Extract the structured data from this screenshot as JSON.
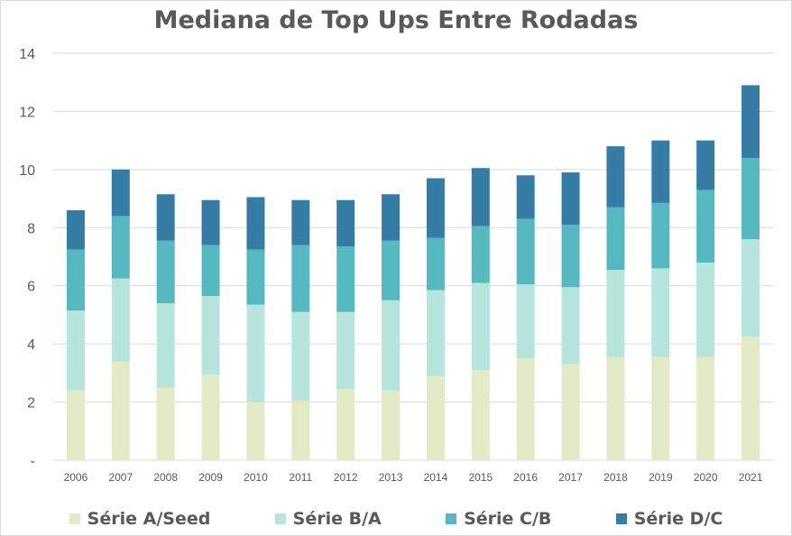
{
  "chart_data": {
    "type": "bar",
    "stacked": true,
    "title": "Mediana de Top Ups Entre Rodadas",
    "xlabel": "",
    "ylabel": "",
    "categories": [
      "2006",
      "2007",
      "2008",
      "2009",
      "2010",
      "2011",
      "2012",
      "2013",
      "2014",
      "2015",
      "2016",
      "2017",
      "2018",
      "2019",
      "2020",
      "2021"
    ],
    "yticks": [
      "-",
      "2",
      "4",
      "6",
      "8",
      "10",
      "12",
      "14"
    ],
    "ylim": [
      0,
      14
    ],
    "grid": true,
    "legend_position": "bottom",
    "series": [
      {
        "name": "Série A/Seed",
        "color": "#e2eac6",
        "values": [
          2.4,
          3.4,
          2.5,
          2.95,
          2.0,
          2.05,
          2.45,
          2.4,
          2.9,
          3.1,
          3.5,
          3.3,
          3.55,
          3.55,
          3.55,
          4.25
        ]
      },
      {
        "name": "Série B/A",
        "color": "#b5e5dc",
        "values": [
          2.75,
          2.85,
          2.9,
          2.7,
          3.35,
          3.05,
          2.65,
          3.1,
          2.95,
          3.0,
          2.55,
          2.65,
          3.0,
          3.05,
          3.25,
          3.35
        ]
      },
      {
        "name": "Série C/B",
        "color": "#56b9c2",
        "values": [
          2.1,
          2.15,
          2.15,
          1.75,
          1.9,
          2.3,
          2.25,
          2.05,
          1.8,
          1.95,
          2.25,
          2.15,
          2.15,
          2.25,
          2.5,
          2.8
        ]
      },
      {
        "name": "Série D/C",
        "color": "#357da5",
        "values": [
          1.35,
          1.6,
          1.6,
          1.55,
          1.8,
          1.55,
          1.6,
          1.6,
          2.05,
          2.0,
          1.5,
          1.8,
          2.1,
          2.15,
          1.7,
          2.5
        ]
      }
    ]
  },
  "legend": {
    "items": [
      "Série A/Seed",
      "Série B/A",
      "Série C/B",
      "Série D/C"
    ]
  }
}
